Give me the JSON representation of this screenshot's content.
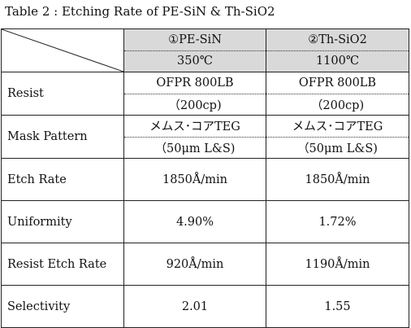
{
  "caption": "Table 2 : Etching Rate of PE-SiN & Th-SiO2",
  "columns": [
    {
      "name": "①PE-SiN",
      "temp": "350℃"
    },
    {
      "name": "②Th-SiO2",
      "temp": "1100℃"
    }
  ],
  "rows": [
    {
      "label": "Resist",
      "values": [
        [
          "OFPR 800LB",
          "（200cp)"
        ],
        [
          "OFPR 800LB",
          "（200cp)"
        ]
      ]
    },
    {
      "label": "Mask Pattern",
      "values": [
        [
          "メムス･コアTEG",
          "（50μm L&S)"
        ],
        [
          "メムス･コアTEG",
          "（50μm L&S)"
        ]
      ]
    },
    {
      "label": "Etch Rate",
      "values": [
        "1850Å/min",
        "1850Å/min"
      ]
    },
    {
      "label": "Uniformity",
      "values": [
        "4.90%",
        "1.72%"
      ]
    },
    {
      "label": "Resist Etch Rate",
      "values": [
        "920Å/min",
        "1190Å/min"
      ]
    },
    {
      "label": "Selectivity",
      "values": [
        "2.01",
        "1.55"
      ]
    }
  ]
}
